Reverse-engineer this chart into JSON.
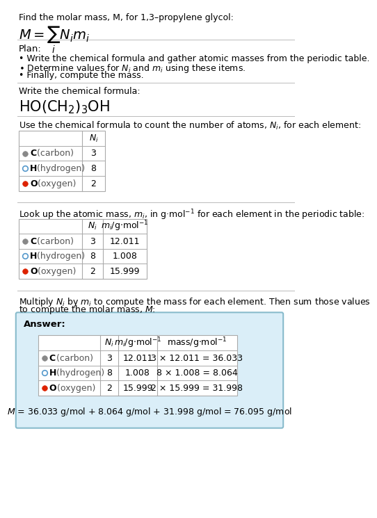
{
  "title_line1": "Find the molar mass, M, for 1,3–propylene glycol:",
  "bg_color": "#ffffff",
  "section_line_color": "#bbbbbb",
  "plan_header": "Plan:",
  "plan_bullets": [
    "• Write the chemical formula and gather atomic masses from the periodic table.",
    "• Determine values for $N_i$ and $m_i$ using these items.",
    "• Finally, compute the mass."
  ],
  "chem_formula_header": "Write the chemical formula:",
  "table1_header": "Use the chemical formula to count the number of atoms, $N_i$, for each element:",
  "table2_header": "Look up the atomic mass, $m_i$, in g·mol$^{-1}$ for each element in the periodic table:",
  "table3_line1": "Multiply $N_i$ by $m_i$ to compute the mass for each element. Then sum those values",
  "table3_line2": "to compute the molar mass, $M$:",
  "elements": [
    "C",
    "H",
    "O"
  ],
  "element_rest": [
    " (carbon)",
    " (hydrogen)",
    " (oxygen)"
  ],
  "dot_colors": [
    "#888888",
    "#aaccff",
    "#dd2200"
  ],
  "dot_filled": [
    true,
    false,
    true
  ],
  "dot_edge_colors": [
    "#888888",
    "#5599cc",
    "#dd2200"
  ],
  "Ni": [
    "3",
    "8",
    "2"
  ],
  "mi": [
    "12.011",
    "1.008",
    "15.999"
  ],
  "mass_formulas": [
    "3 × 12.011 = 36.033",
    "8 × 1.008 = 8.064",
    "2 × 15.999 = 31.998"
  ],
  "final_eq": "$M$ = 36.033 g/mol + 8.064 g/mol + 31.998 g/mol = 76.095 g/mol",
  "answer_box_color": "#daeef8",
  "answer_box_border": "#88bbcc",
  "table_border_color": "#aaaaaa",
  "text_color": "#000000",
  "label_gray": "#555555"
}
